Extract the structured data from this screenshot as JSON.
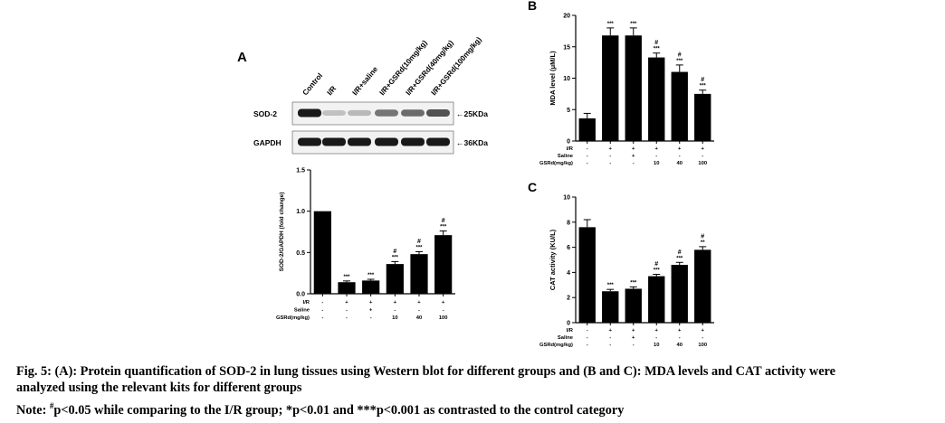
{
  "panels": {
    "a": "A",
    "b": "B",
    "c": "C"
  },
  "blot": {
    "lanes": [
      "Control",
      "I/R",
      "I/R+saline",
      "I/R+GSRd(10mg/kg)",
      "I/R+GSRd(40mg/kg)",
      "I/R+GSRd(100mg/kg)"
    ],
    "rows": [
      {
        "label": "SOD-2",
        "marker": "←25KDa",
        "intensities": [
          1.0,
          0.18,
          0.22,
          0.55,
          0.6,
          0.72
        ]
      },
      {
        "label": "GAPDH",
        "marker": "←36KDa",
        "intensities": [
          1.0,
          1.0,
          1.0,
          1.0,
          1.0,
          1.0
        ]
      }
    ]
  },
  "treatment_table": {
    "rows": [
      {
        "label": "I/R",
        "values": [
          "-",
          "+",
          "+",
          "+",
          "+",
          "+"
        ]
      },
      {
        "label": "Saline",
        "values": [
          "-",
          "-",
          "+",
          "-",
          "-",
          "-"
        ]
      },
      {
        "label": "GSRd(mg/kg)",
        "values": [
          "-",
          "-",
          "-",
          "10",
          "40",
          "100"
        ]
      }
    ]
  },
  "chart_data": [
    {
      "type": "bar",
      "panel": "A",
      "ylabel": "SOD-2/GAPDH (fold change)",
      "ylim": [
        0,
        1.5
      ],
      "yticks": [
        "0.0",
        "0.5",
        "1.0",
        "1.5"
      ],
      "values": [
        1.0,
        0.14,
        0.16,
        0.36,
        0.48,
        0.71
      ],
      "errors": [
        0,
        0.015,
        0.015,
        0.03,
        0.03,
        0.05
      ],
      "annotations": [
        "",
        "***",
        "***",
        "#\n***",
        "#\n***",
        "#\n***"
      ]
    },
    {
      "type": "bar",
      "panel": "B",
      "ylabel": "MDA level (μM/L)",
      "ylim": [
        0,
        20
      ],
      "yticks": [
        "0",
        "5",
        "10",
        "15",
        "20"
      ],
      "values": [
        3.6,
        16.8,
        16.8,
        13.3,
        11.0,
        7.5
      ],
      "errors": [
        0.8,
        1.2,
        1.2,
        0.7,
        1.1,
        0.6
      ],
      "annotations": [
        "",
        "***",
        "***",
        "#\n***",
        "#\n***",
        "#\n***"
      ]
    },
    {
      "type": "bar",
      "panel": "C",
      "ylabel": "CAT activity (KU/L)",
      "ylim": [
        0,
        10
      ],
      "yticks": [
        "0",
        "2",
        "4",
        "6",
        "8",
        "10"
      ],
      "values": [
        7.6,
        2.5,
        2.7,
        3.7,
        4.6,
        5.8
      ],
      "errors": [
        0.6,
        0.15,
        0.15,
        0.15,
        0.2,
        0.25
      ],
      "annotations": [
        "",
        "***",
        "***",
        "#\n***",
        "#\n***",
        "#\n**"
      ]
    }
  ],
  "caption": {
    "line1": "Fig. 5: (A): Protein quantification of SOD-2 in lung tissues using Western blot for different groups and (B and C): MDA levels and CAT activity were",
    "line2": "analyzed using the relevant kits for different groups",
    "line3_prefix": "Note: ",
    "line3_sup": "#",
    "line3_rest": "p<0.05 while comparing to the I/R group; *p<0.01 and ***p<0.001 as contrasted to the control category"
  }
}
